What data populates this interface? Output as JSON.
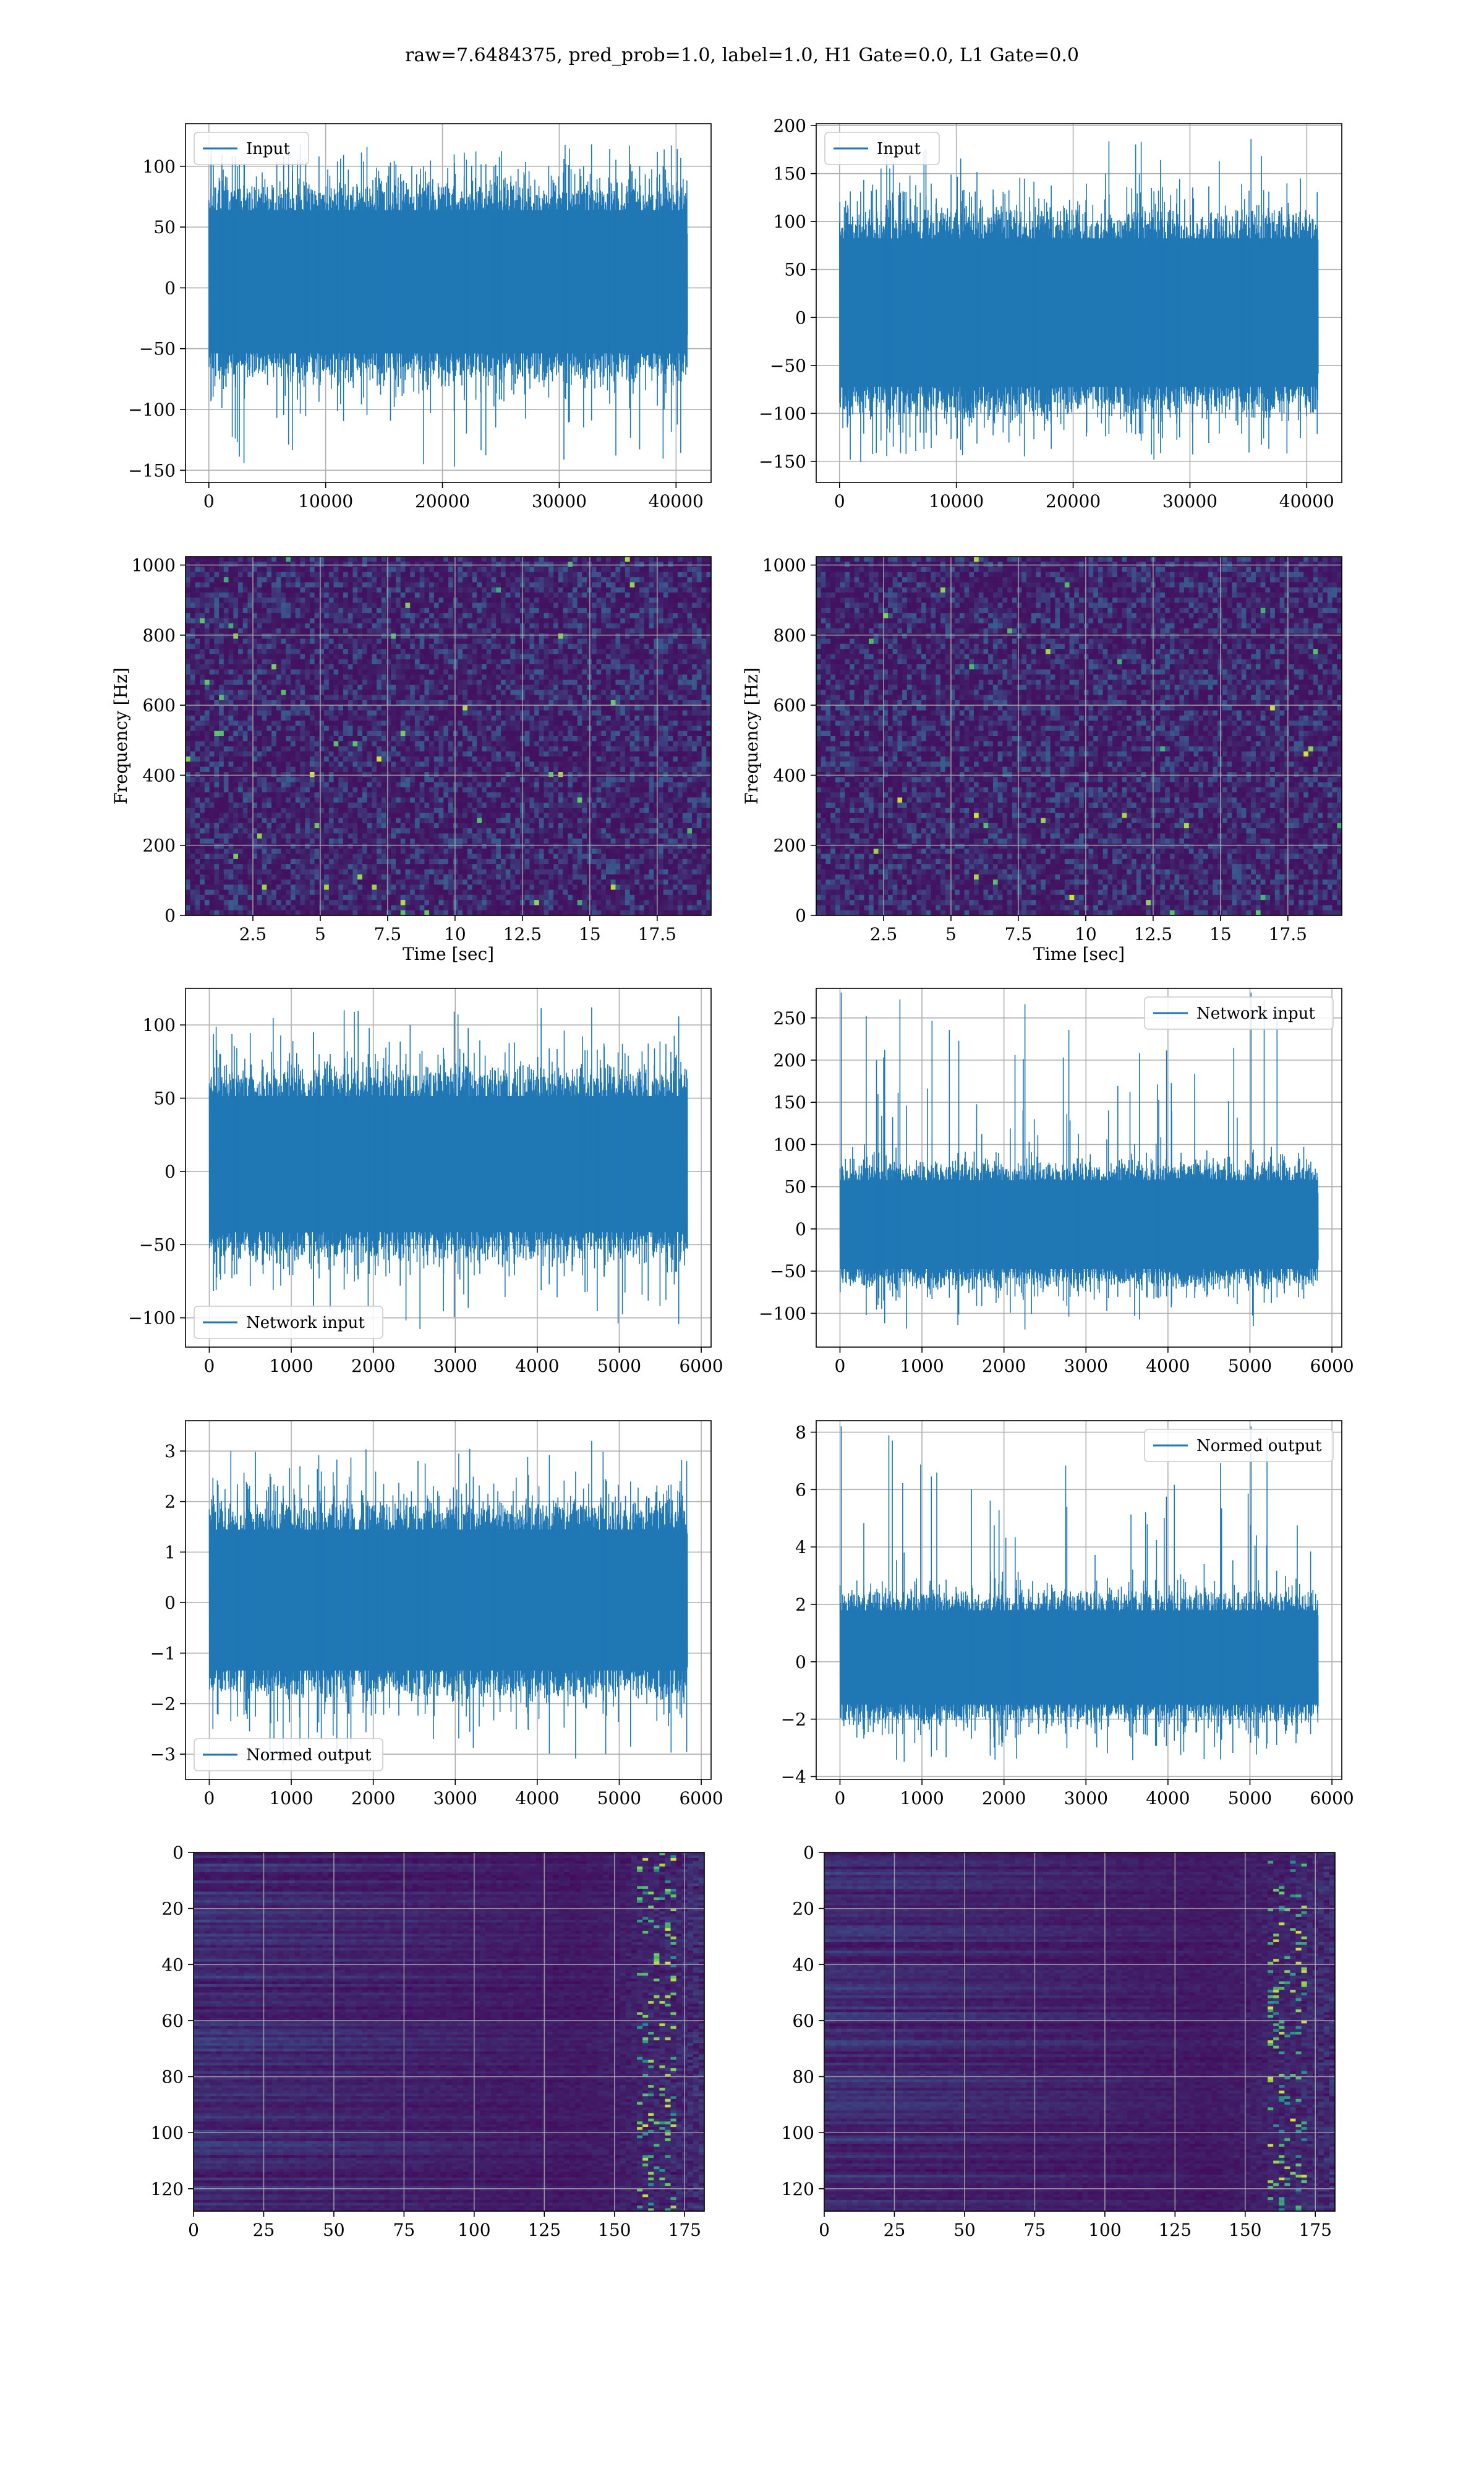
{
  "figure": {
    "title": "raw=7.6484375, pred_prob=1.0, label=1.0, H1 Gate=0.0, L1 Gate=0.0"
  },
  "colors": {
    "line": "#1f77b4",
    "viridis_low": "#440154",
    "viridis_mid": "#21918c",
    "viridis_high": "#fde725",
    "grid": "#b0b0b0"
  },
  "chart_data": [
    {
      "id": "h1-input",
      "type": "line",
      "row": 0,
      "col": 0,
      "title": "",
      "xlabel": "",
      "ylabel": "",
      "xlim": [
        -2000,
        43000
      ],
      "ylim": [
        -160,
        135
      ],
      "xticks": [
        0,
        10000,
        20000,
        30000,
        40000
      ],
      "yticks": [
        -150,
        -100,
        -50,
        0,
        50,
        100
      ],
      "legend": "upper left",
      "series": [
        {
          "name": "Input",
          "n_samples": 40960,
          "envelope": [
            -90,
            100
          ],
          "extremes": [
            -148,
            118
          ]
        }
      ]
    },
    {
      "id": "l1-input",
      "type": "line",
      "row": 0,
      "col": 1,
      "title": "",
      "xlabel": "",
      "ylabel": "",
      "xlim": [
        -2000,
        43000
      ],
      "ylim": [
        -172,
        202
      ],
      "xticks": [
        0,
        10000,
        20000,
        30000,
        40000
      ],
      "yticks": [
        -150,
        -100,
        -50,
        0,
        50,
        100,
        150,
        200
      ],
      "legend": "upper left",
      "series": [
        {
          "name": "Input",
          "n_samples": 40960,
          "envelope": [
            -120,
            130
          ],
          "extremes": [
            -155,
            186
          ]
        }
      ]
    },
    {
      "id": "h1-spectrogram",
      "type": "heatmap",
      "row": 1,
      "col": 0,
      "title": "",
      "xlabel": "Time [sec]",
      "ylabel": "Frequency [Hz]",
      "xlim": [
        0,
        19.5
      ],
      "ylim": [
        0,
        1024
      ],
      "xticks": [
        2.5,
        5.0,
        7.5,
        10.0,
        12.5,
        15.0,
        17.5
      ],
      "yticks": [
        0,
        200,
        400,
        600,
        800,
        1000
      ],
      "colormap": "viridis"
    },
    {
      "id": "l1-spectrogram",
      "type": "heatmap",
      "row": 1,
      "col": 1,
      "title": "",
      "xlabel": "Time [sec]",
      "ylabel": "Frequency [Hz]",
      "xlim": [
        0,
        19.5
      ],
      "ylim": [
        0,
        1024
      ],
      "xticks": [
        2.5,
        5.0,
        7.5,
        10.0,
        12.5,
        15.0,
        17.5
      ],
      "yticks": [
        0,
        200,
        400,
        600,
        800,
        1000
      ],
      "colormap": "viridis"
    },
    {
      "id": "h1-network-input",
      "type": "line",
      "row": 2,
      "col": 0,
      "title": "",
      "xlabel": "",
      "ylabel": "",
      "xlim": [
        -290,
        6120
      ],
      "ylim": [
        -120,
        125
      ],
      "xticks": [
        0,
        1000,
        2000,
        3000,
        4000,
        5000,
        6000
      ],
      "yticks": [
        -100,
        -50,
        0,
        50,
        100
      ],
      "legend": "lower left",
      "series": [
        {
          "name": "Network input",
          "n_samples": 5830,
          "envelope": [
            -70,
            80
          ],
          "extremes": [
            -110,
            112
          ]
        }
      ]
    },
    {
      "id": "l1-network-input",
      "type": "line",
      "row": 2,
      "col": 1,
      "title": "",
      "xlabel": "",
      "ylabel": "",
      "xlim": [
        -290,
        6120
      ],
      "ylim": [
        -140,
        285
      ],
      "xticks": [
        0,
        1000,
        2000,
        3000,
        4000,
        5000,
        6000
      ],
      "yticks": [
        -100,
        -50,
        0,
        50,
        100,
        150,
        200,
        250
      ],
      "legend": "upper right",
      "series": [
        {
          "name": "Network input",
          "n_samples": 5830,
          "envelope": [
            -80,
            90
          ],
          "extremes": [
            -120,
            280
          ]
        }
      ]
    },
    {
      "id": "h1-normed-output",
      "type": "line",
      "row": 3,
      "col": 0,
      "title": "",
      "xlabel": "",
      "ylabel": "",
      "xlim": [
        -290,
        6120
      ],
      "ylim": [
        -3.5,
        3.6
      ],
      "xticks": [
        0,
        1000,
        2000,
        3000,
        4000,
        5000,
        6000
      ],
      "yticks": [
        -3,
        -2,
        -1,
        0,
        1,
        2,
        3
      ],
      "legend": "lower left",
      "series": [
        {
          "name": "Normed output",
          "n_samples": 5830,
          "envelope": [
            -2.2,
            2.3
          ],
          "extremes": [
            -3.2,
            3.2
          ]
        }
      ]
    },
    {
      "id": "l1-normed-output",
      "type": "line",
      "row": 3,
      "col": 1,
      "title": "",
      "xlabel": "",
      "ylabel": "",
      "xlim": [
        -290,
        6120
      ],
      "ylim": [
        -4.1,
        8.4
      ],
      "xticks": [
        0,
        1000,
        2000,
        3000,
        4000,
        5000,
        6000
      ],
      "yticks": [
        -4,
        -2,
        0,
        2,
        4,
        6,
        8
      ],
      "legend": "upper right",
      "series": [
        {
          "name": "Normed output",
          "n_samples": 5830,
          "envelope": [
            -2.5,
            2.8
          ],
          "extremes": [
            -3.5,
            8.2
          ]
        }
      ]
    },
    {
      "id": "h1-feature-map",
      "type": "heatmap",
      "row": 4,
      "col": 0,
      "title": "",
      "xlabel": "",
      "ylabel": "",
      "xlim": [
        0,
        182
      ],
      "ylim": [
        128,
        0
      ],
      "xticks": [
        0,
        25,
        50,
        75,
        100,
        125,
        150,
        175
      ],
      "yticks": [
        0,
        20,
        40,
        60,
        80,
        100,
        120
      ],
      "colormap": "viridis"
    },
    {
      "id": "l1-feature-map",
      "type": "heatmap",
      "row": 4,
      "col": 1,
      "title": "",
      "xlabel": "",
      "ylabel": "",
      "xlim": [
        0,
        182
      ],
      "ylim": [
        128,
        0
      ],
      "xticks": [
        0,
        25,
        50,
        75,
        100,
        125,
        150,
        175
      ],
      "yticks": [
        0,
        20,
        40,
        60,
        80,
        100,
        120
      ],
      "colormap": "viridis"
    }
  ]
}
